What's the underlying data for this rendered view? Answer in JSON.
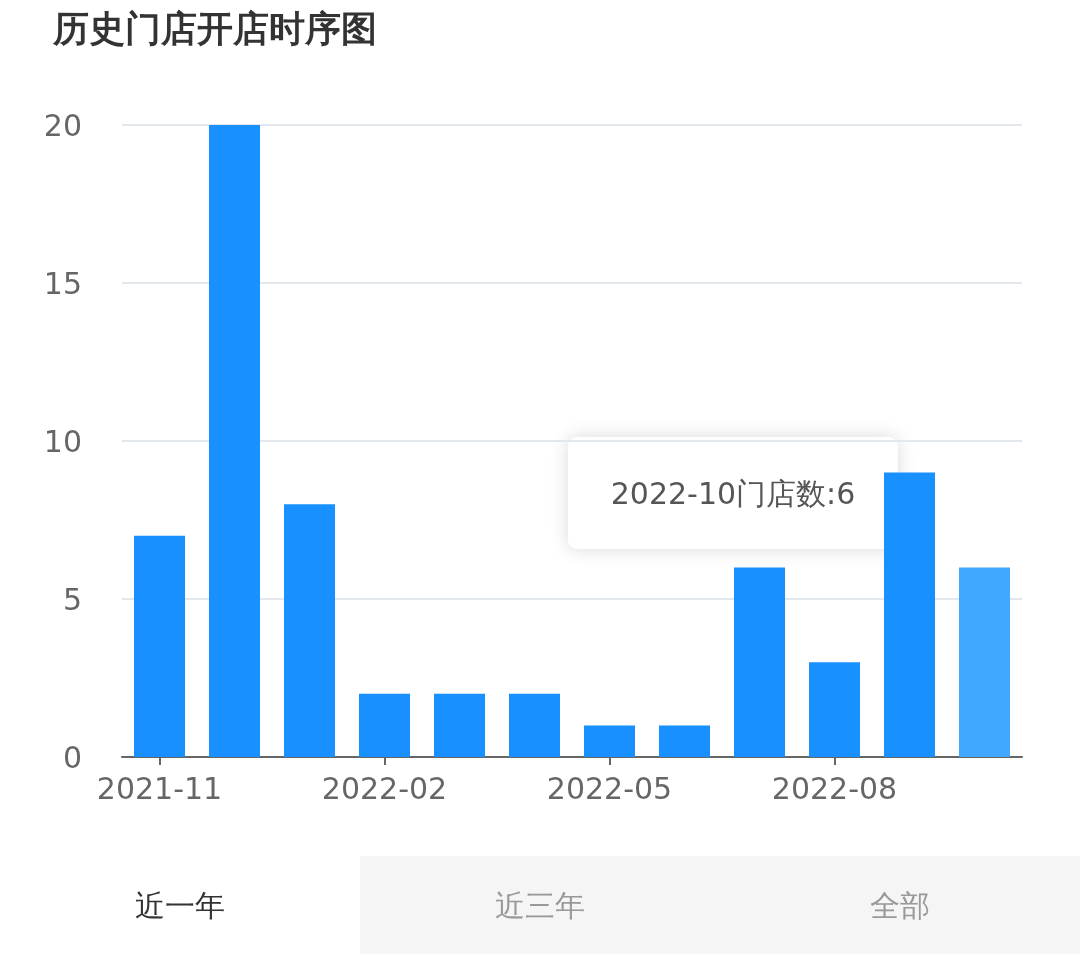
{
  "chart_data": {
    "type": "bar",
    "title": "历史门店开店时序图",
    "categories": [
      "2021-11",
      null,
      null,
      "2022-02",
      null,
      null,
      "2022-05",
      null,
      null,
      "2022-08",
      null,
      null
    ],
    "values": [
      7,
      20,
      8,
      2,
      2,
      2,
      1,
      1,
      6,
      3,
      9,
      6
    ],
    "colors": [
      "#1890ff",
      "#1890ff",
      "#1890ff",
      "#1890ff",
      "#1890ff",
      "#1890ff",
      "#1890ff",
      "#1890ff",
      "#1890ff",
      "#1890ff",
      "#1890ff",
      "#40a9ff"
    ],
    "ylim": [
      0,
      20
    ],
    "yticks": [
      0,
      5,
      10,
      15,
      20
    ],
    "grid": "y",
    "annotations": [
      "2022-10门店数:6",
      "近一年",
      "近三年",
      "全部"
    ]
  }
}
